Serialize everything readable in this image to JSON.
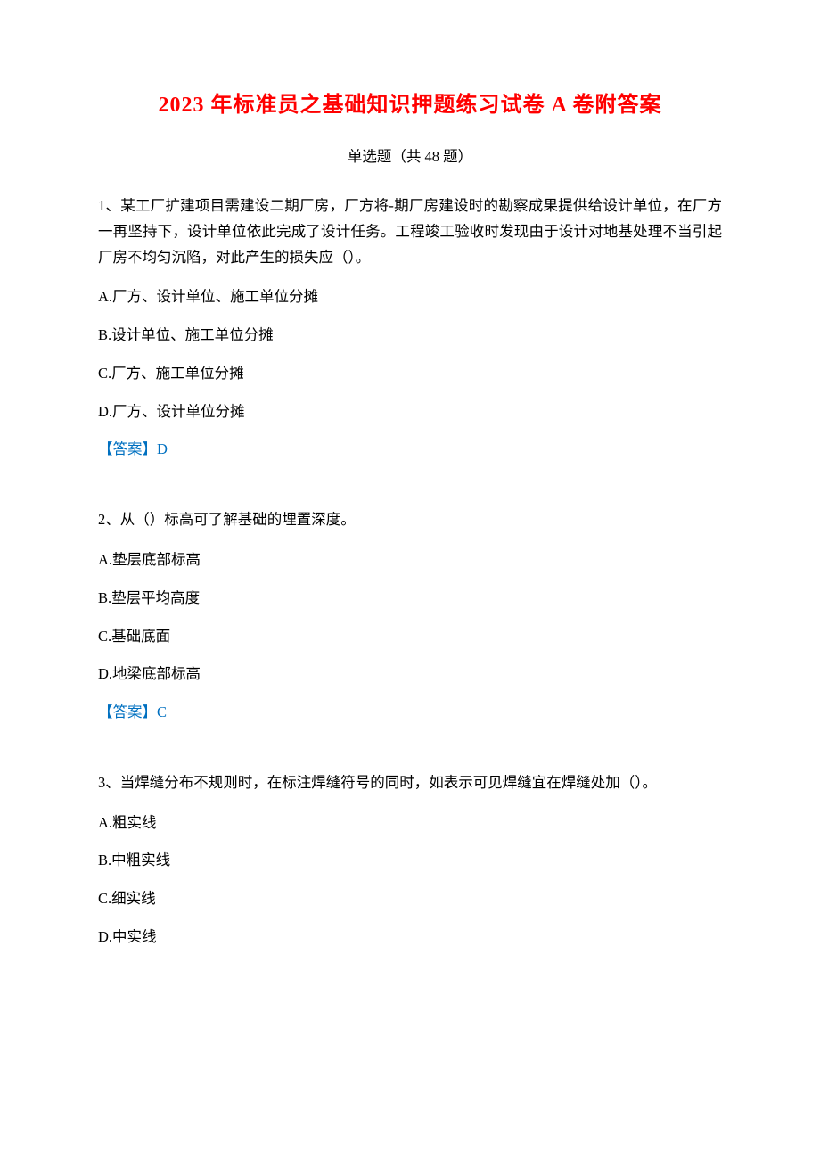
{
  "title": "2023 年标准员之基础知识押题练习试卷 A 卷附答案",
  "subtitle": "单选题（共 48 题）",
  "questions": [
    {
      "stem": "1、某工厂扩建项目需建设二期厂房，厂方将-期厂房建设时的勘察成果提供给设计单位，在厂方一再坚持下，设计单位依此完成了设计任务。工程竣工验收时发现由于设计对地基处理不当引起厂房不均匀沉陷，对此产生的损失应（）。",
      "options": [
        "A.厂方、设计单位、施工单位分摊",
        "B.设计单位、施工单位分摊",
        "C.厂方、施工单位分摊",
        "D.厂方、设计单位分摊"
      ],
      "answer_label": "【答案】",
      "answer_value": "D"
    },
    {
      "stem": "2、从（）标高可了解基础的埋置深度。",
      "options": [
        "A.垫层底部标高",
        "B.垫层平均高度",
        "C.基础底面",
        "D.地梁底部标高"
      ],
      "answer_label": "【答案】",
      "answer_value": "C"
    },
    {
      "stem": "3、当焊缝分布不规则时，在标注焊缝符号的同时，如表示可见焊缝宜在焊缝处加（）。",
      "options": [
        "A.粗实线",
        "B.中粗实线",
        "C.细实线",
        "D.中实线"
      ],
      "answer_label": "",
      "answer_value": ""
    }
  ],
  "colors": {
    "title": "#ff0000",
    "answer": "#0070c0",
    "text": "#000000",
    "background": "#ffffff"
  }
}
